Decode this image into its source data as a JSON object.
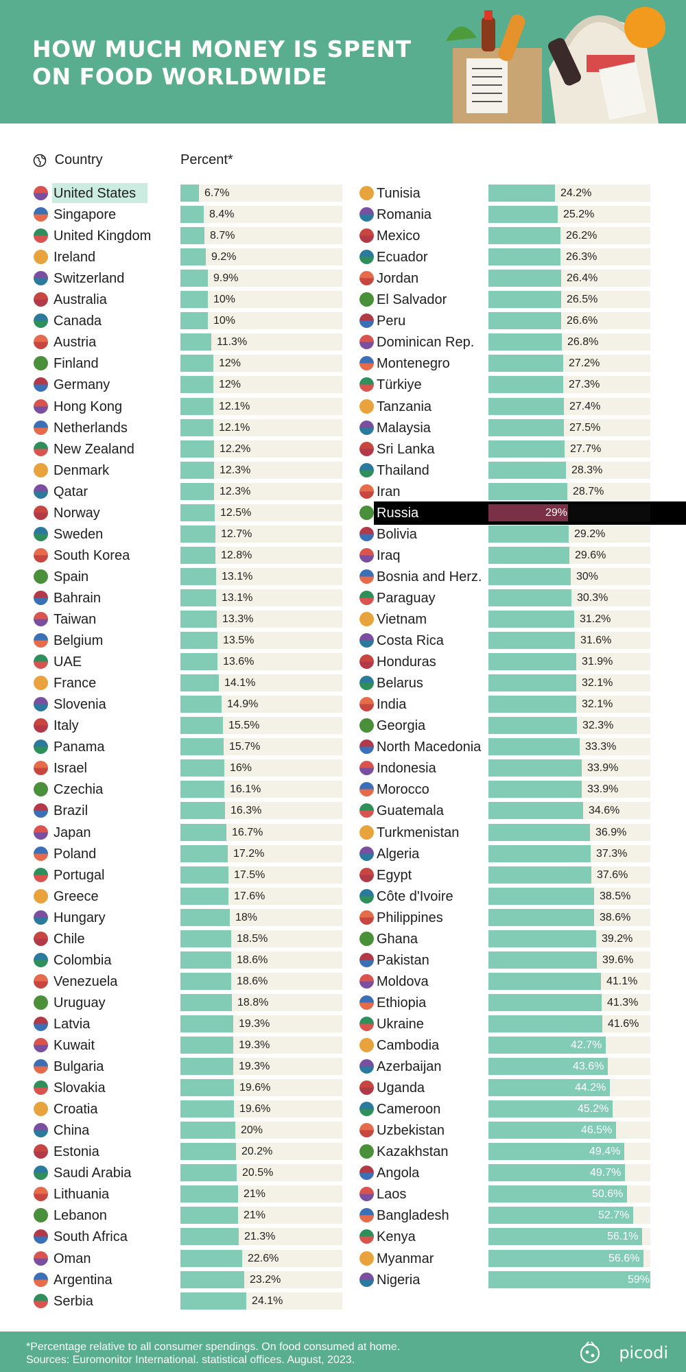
{
  "header": {
    "title_line1": "HOW MUCH MONEY IS SPENT",
    "title_line2": "ON FOOD WORLDWIDE"
  },
  "columns": {
    "country_label": "Country",
    "percent_label": "Percent*"
  },
  "colors": {
    "brand_green": "#58ae8e",
    "bar": "#82cbb5",
    "track": "#f4f2e6",
    "highlight_us": "#ccece2",
    "highlight_russia_bg": "#000000",
    "highlight_russia_bar": "#7a3046"
  },
  "chart_data": {
    "type": "bar",
    "orientation": "horizontal",
    "xlim": [
      0,
      59
    ],
    "unit": "%",
    "categories": [
      "United States",
      "Singapore",
      "United Kingdom",
      "Ireland",
      "Switzerland",
      "Australia",
      "Canada",
      "Austria",
      "Finland",
      "Germany",
      "Hong Kong",
      "Netherlands",
      "New Zealand",
      "Denmark",
      "Qatar",
      "Norway",
      "Sweden",
      "South Korea",
      "Spain",
      "Bahrain",
      "Taiwan",
      "Belgium",
      "UAE",
      "France",
      "Slovenia",
      "Italy",
      "Panama",
      "Israel",
      "Czechia",
      "Brazil",
      "Japan",
      "Poland",
      "Portugal",
      "Greece",
      "Hungary",
      "Chile",
      "Colombia",
      "Venezuela",
      "Uruguay",
      "Latvia",
      "Kuwait",
      "Bulgaria",
      "Slovakia",
      "Croatia",
      "China",
      "Estonia",
      "Saudi Arabia",
      "Lithuania",
      "Lebanon",
      "South Africa",
      "Oman",
      "Argentina",
      "Serbia",
      "Tunisia",
      "Romania",
      "Mexico",
      "Ecuador",
      "Jordan",
      "El Salvador",
      "Peru",
      "Dominican Rep.",
      "Montenegro",
      "Türkiye",
      "Tanzania",
      "Malaysia",
      "Sri Lanka",
      "Thailand",
      "Iran",
      "Russia",
      "Bolivia",
      "Iraq",
      "Bosnia and Herz.",
      "Paraguay",
      "Vietnam",
      "Costa Rica",
      "Honduras",
      "Belarus",
      "India",
      "Georgia",
      "North Macedonia",
      "Indonesia",
      "Morocco",
      "Guatemala",
      "Turkmenistan",
      "Algeria",
      "Egypt",
      "Côte d'Ivoire",
      "Philippines",
      "Ghana",
      "Pakistan",
      "Moldova",
      "Ethiopia",
      "Ukraine",
      "Cambodia",
      "Azerbaijan",
      "Uganda",
      "Cameroon",
      "Uzbekistan",
      "Kazakhstan",
      "Angola",
      "Laos",
      "Bangladesh",
      "Kenya",
      "Myanmar",
      "Nigeria"
    ],
    "values": [
      6.7,
      8.4,
      8.7,
      9.2,
      9.9,
      10,
      10,
      11.3,
      12,
      12,
      12.1,
      12.1,
      12.2,
      12.3,
      12.3,
      12.5,
      12.7,
      12.8,
      13.1,
      13.1,
      13.3,
      13.5,
      13.6,
      14.1,
      14.9,
      15.5,
      15.7,
      16,
      16.1,
      16.3,
      16.7,
      17.2,
      17.5,
      17.6,
      18,
      18.5,
      18.6,
      18.6,
      18.8,
      19.3,
      19.3,
      19.3,
      19.6,
      19.6,
      20,
      20.2,
      20.5,
      21,
      21,
      21.3,
      22.6,
      23.2,
      24.1,
      24.2,
      25.2,
      26.2,
      26.3,
      26.4,
      26.5,
      26.6,
      26.8,
      27.2,
      27.3,
      27.4,
      27.5,
      27.7,
      28.3,
      28.7,
      29,
      29.2,
      29.6,
      30,
      30.3,
      31.2,
      31.6,
      31.9,
      32.1,
      32.1,
      32.3,
      33.3,
      33.9,
      33.9,
      34.6,
      36.9,
      37.3,
      37.6,
      38.5,
      38.6,
      39.2,
      39.6,
      41.1,
      41.3,
      41.6,
      42.7,
      43.6,
      44.2,
      45.2,
      46.5,
      49.4,
      49.7,
      50.6,
      52.7,
      56.1,
      56.6,
      59
    ],
    "labels": [
      "6.7%",
      "8.4%",
      "8.7%",
      "9.2%",
      "9.9%",
      "10%",
      "10%",
      "11.3%",
      "12%",
      "12%",
      "12.1%",
      "12.1%",
      "12.2%",
      "12.3%",
      "12.3%",
      "12.5%",
      "12.7%",
      "12.8%",
      "13.1%",
      "13.1%",
      "13.3%",
      "13.5%",
      "13.6%",
      "14.1%",
      "14.9%",
      "15.5%",
      "15.7%",
      "16%",
      "16.1%",
      "16.3%",
      "16.7%",
      "17.2%",
      "17.5%",
      "17.6%",
      "18%",
      "18.5%",
      "18.6%",
      "18.6%",
      "18.8%",
      "19.3%",
      "19.3%",
      "19.3%",
      "19.6%",
      "19.6%",
      "20%",
      "20.2%",
      "20.5%",
      "21%",
      "21%",
      "21.3%",
      "22.6%",
      "23.2%",
      "24.1%",
      "24.2%",
      "25.2%",
      "26.2%",
      "26.3%",
      "26.4%",
      "26.5%",
      "26.6%",
      "26.8%",
      "27.2%",
      "27.3%",
      "27.4%",
      "27.5%",
      "27.7%",
      "28.3%",
      "28.7%",
      "29%",
      "29.2%",
      "29.6%",
      "30%",
      "30.3%",
      "31.2%",
      "31.6%",
      "31.9%",
      "32.1%",
      "32.1%",
      "32.3%",
      "33.3%",
      "33.9%",
      "33.9%",
      "34.6%",
      "36.9%",
      "37.3%",
      "37.6%",
      "38.5%",
      "38.6%",
      "39.2%",
      "39.6%",
      "41.1%",
      "41.3%",
      "41.6%",
      "42.7%",
      "43.6%",
      "44.2%",
      "45.2%",
      "46.5%",
      "49.4%",
      "49.7%",
      "50.6%",
      "52.7%",
      "56.1%",
      "56.6%",
      "59%"
    ],
    "highlighted": [
      "United States",
      "Russia"
    ],
    "title": "HOW MUCH MONEY IS SPENT ON FOOD WORLDWIDE",
    "ylabel": "Country",
    "xlabel": "Percent*",
    "grid": false,
    "legend": "none"
  },
  "footer": {
    "note_line1": "*Percentage relative to all consumer spendings. On food consumed at home.",
    "note_line2": "Sources: Euromonitor International. statistical offices. August, 2023.",
    "logo_text": "picodi"
  }
}
